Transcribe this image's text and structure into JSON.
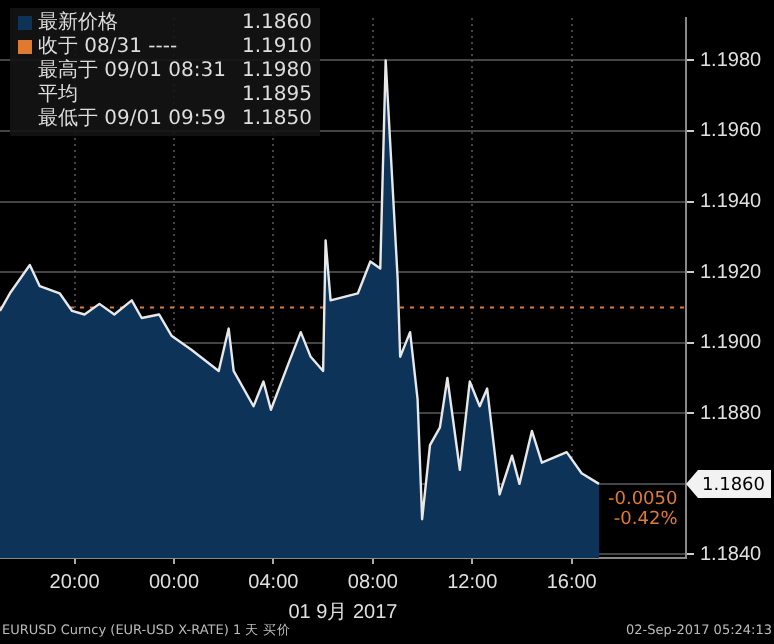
{
  "chart_data": {
    "type": "area",
    "xlabel": "01 9月 2017",
    "x": [
      "2017-08-31T17:00",
      "2017-08-31T17:24",
      "2017-08-31T18:12",
      "2017-08-31T18:36",
      "2017-08-31T19:24",
      "2017-08-31T19:54",
      "2017-08-31T20:24",
      "2017-08-31T21:00",
      "2017-08-31T21:36",
      "2017-08-31T22:18",
      "2017-08-31T22:42",
      "2017-08-31T23:24",
      "2017-08-31T23:54",
      "2017-09-01T00:42",
      "2017-09-01T01:48",
      "2017-09-01T02:12",
      "2017-09-01T02:24",
      "2017-09-01T03:12",
      "2017-09-01T03:36",
      "2017-09-01T03:54",
      "2017-09-01T04:36",
      "2017-09-01T05:06",
      "2017-09-01T05:30",
      "2017-09-01T06:00",
      "2017-09-01T06:06",
      "2017-09-01T06:18",
      "2017-09-01T07:24",
      "2017-09-01T07:54",
      "2017-09-01T08:18",
      "2017-09-01T08:31",
      "2017-09-01T09:00",
      "2017-09-01T09:06",
      "2017-09-01T09:30",
      "2017-09-01T09:48",
      "2017-09-01T09:59",
      "2017-09-01T10:18",
      "2017-09-01T10:42",
      "2017-09-01T11:00",
      "2017-09-01T11:30",
      "2017-09-01T11:54",
      "2017-09-01T12:18",
      "2017-09-01T12:36",
      "2017-09-01T13:06",
      "2017-09-01T13:36",
      "2017-09-01T13:54",
      "2017-09-01T14:24",
      "2017-09-01T14:48",
      "2017-09-01T15:48",
      "2017-09-01T16:24",
      "2017-09-01T17:06"
    ],
    "series": [
      {
        "name": "最新价格",
        "color": "#0d3358",
        "values": [
          1.1909,
          1.1914,
          1.1922,
          1.1916,
          1.1914,
          1.1909,
          1.1908,
          1.1911,
          1.1908,
          1.1912,
          1.1907,
          1.1908,
          1.1902,
          1.1898,
          1.1892,
          1.1904,
          1.1892,
          1.1882,
          1.1889,
          1.1881,
          1.1894,
          1.1903,
          1.1896,
          1.1892,
          1.1929,
          1.1912,
          1.1914,
          1.1923,
          1.1921,
          1.198,
          1.1918,
          1.1896,
          1.1903,
          1.1884,
          1.185,
          1.1871,
          1.1876,
          1.189,
          1.1864,
          1.1889,
          1.1882,
          1.1887,
          1.1857,
          1.1868,
          1.186,
          1.1875,
          1.1866,
          1.1869,
          1.1863,
          1.186
        ]
      }
    ],
    "xlim": [
      "2017-08-31T17:00",
      "2017-09-01T20:36"
    ],
    "xticks": [
      {
        "value": "2017-08-31T20:00",
        "label": "20:00"
      },
      {
        "value": "2017-09-01T00:00",
        "label": "00:00"
      },
      {
        "value": "2017-09-01T04:00",
        "label": "04:00"
      },
      {
        "value": "2017-09-01T08:00",
        "label": "08:00"
      },
      {
        "value": "2017-09-01T12:00",
        "label": "12:00"
      },
      {
        "value": "2017-09-01T16:00",
        "label": "16:00"
      }
    ],
    "ylim": [
      1.1839,
      1.1992
    ],
    "yticks": [
      {
        "value": 1.184,
        "label": "1.1840"
      },
      {
        "value": 1.186,
        "label": null
      },
      {
        "value": 1.188,
        "label": "1.1880"
      },
      {
        "value": 1.19,
        "label": "1.1900"
      },
      {
        "value": 1.192,
        "label": "1.1920"
      },
      {
        "value": 1.194,
        "label": "1.1940"
      },
      {
        "value": 1.196,
        "label": "1.1960"
      },
      {
        "value": 1.198,
        "label": "1.1980"
      }
    ],
    "ref_lines": [
      {
        "axis": "y",
        "value": 1.191,
        "label": "收于 08/31 ----",
        "color": "#e07a30",
        "line_style": "dotted"
      }
    ],
    "annotations": [
      "1.1860",
      "1.1910",
      "最高于 09/01 08:31 1.1980",
      "平均 1.1895",
      "最低于 09/01 09:59 1.1850",
      "-0.0050",
      "-0.42%",
      "EURUSD Curncy (EUR-USD X-RATE) 1 天 买价",
      "02-Sep-2017 05:24:13",
      "1.1860"
    ],
    "grid": true,
    "legend": "top left",
    "marker": "none",
    "line_style": "solid"
  }
}
